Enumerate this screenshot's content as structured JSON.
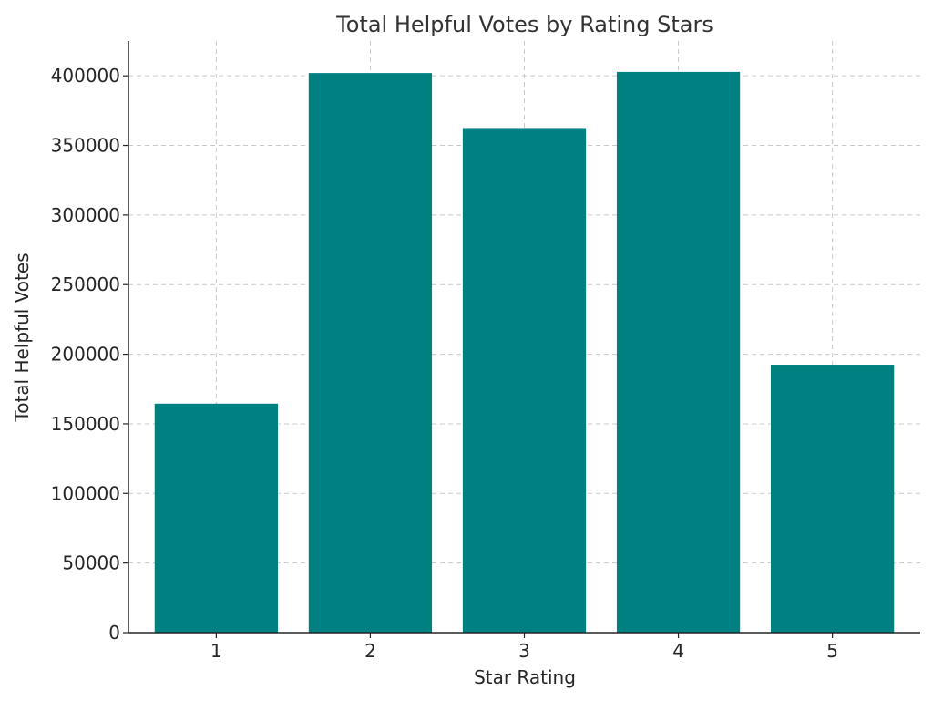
{
  "chart_data": {
    "type": "bar",
    "title": "Total Helpful Votes by Rating Stars",
    "xlabel": "Star Rating",
    "ylabel": "Total Helpful Votes",
    "categories": [
      "1",
      "2",
      "3",
      "4",
      "5"
    ],
    "values": [
      164500,
      402000,
      362500,
      402800,
      192500
    ],
    "ylim": [
      0,
      425000
    ],
    "yticks": [
      "0",
      "50000",
      "100000",
      "150000",
      "200000",
      "250000",
      "300000",
      "350000",
      "400000"
    ],
    "grid": true,
    "legend": "none",
    "bar_color": "#008080"
  }
}
